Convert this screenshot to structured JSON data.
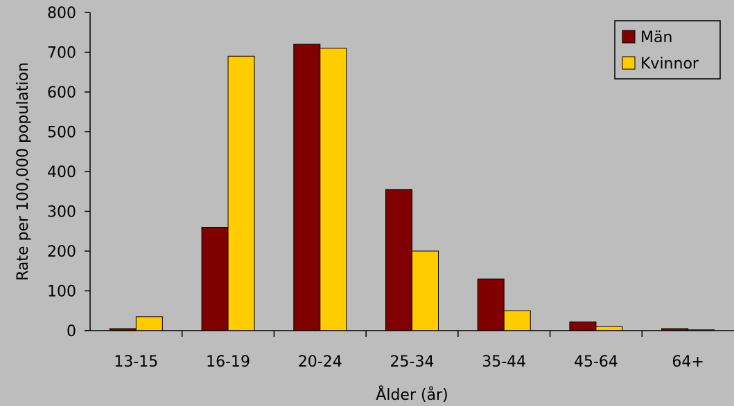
{
  "chart_data": {
    "type": "bar",
    "title": "",
    "xlabel": "Ålder (år)",
    "ylabel": "Rate per 100,000 population",
    "categories": [
      "13-15",
      "16-19",
      "20-24",
      "25-34",
      "35-44",
      "45-64",
      "64+"
    ],
    "series": [
      {
        "name": "Män",
        "color": "#800000",
        "values": [
          5,
          260,
          720,
          355,
          130,
          22,
          5
        ]
      },
      {
        "name": "Kvinnor",
        "color": "#ffcc00",
        "values": [
          35,
          690,
          710,
          200,
          50,
          10,
          2
        ]
      }
    ],
    "ylim": [
      0,
      800
    ],
    "yticks": [
      "0",
      "100",
      "200",
      "300",
      "400",
      "500",
      "600",
      "700",
      "800"
    ],
    "grid": false,
    "legend": "top-right"
  },
  "colors": {
    "background": "#bdbdbd",
    "axis": "#000000",
    "bar_edge": "#000000"
  }
}
